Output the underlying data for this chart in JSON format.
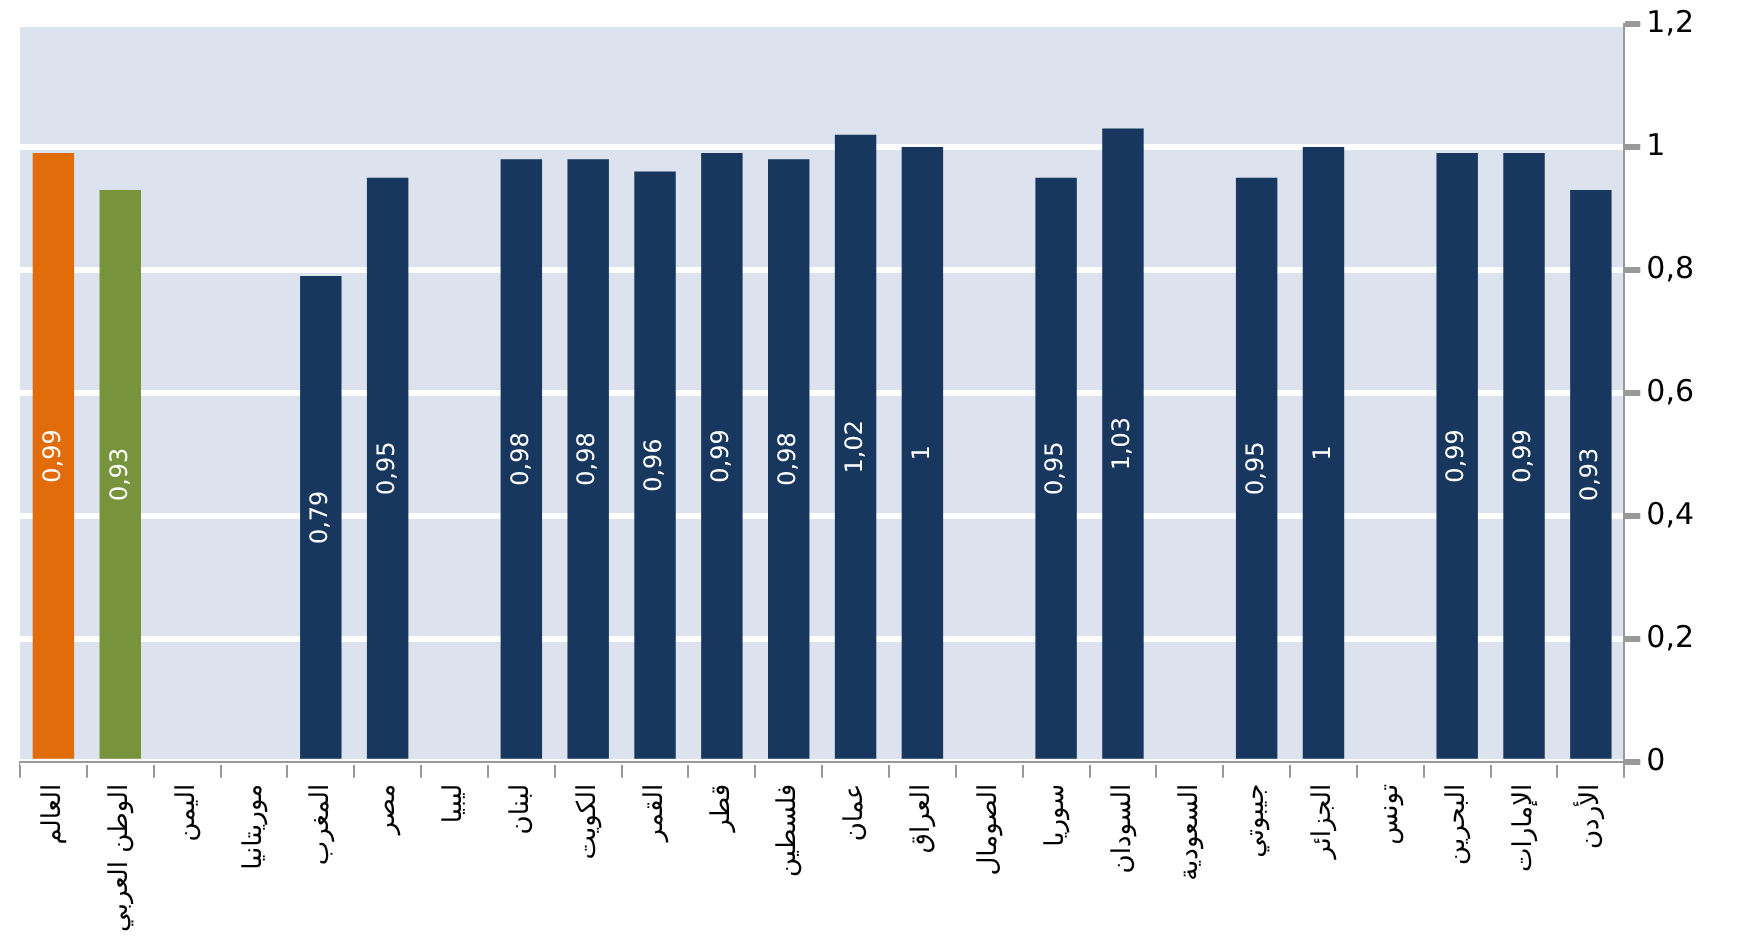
{
  "chart_data": {
    "type": "bar",
    "categories": [
      "العالم",
      "الوطن العربي",
      "اليمن",
      "موريتانيا",
      "المغرب",
      "مصر",
      "ليبيا",
      "لبنان",
      "الكويت",
      "القمر",
      "قطر",
      "فلسطين",
      "عمان",
      "العراق",
      "الصومال",
      "سوريا",
      "السودان",
      "السعودية",
      "جيبوتي",
      "الجزائر",
      "تونس",
      "البحرين",
      "الإمارات",
      "الأردن"
    ],
    "values": [
      0.99,
      0.93,
      null,
      null,
      0.79,
      0.95,
      null,
      0.98,
      0.98,
      0.96,
      0.99,
      0.98,
      1.02,
      1,
      null,
      0.95,
      1.03,
      null,
      0.95,
      1,
      null,
      0.99,
      0.99,
      0.93
    ],
    "colors": [
      "#e36c0a",
      "#77933c",
      "#17375e",
      "#17375e",
      "#17375e",
      "#17375e",
      "#17375e",
      "#17375e",
      "#17375e",
      "#17375e",
      "#17375e",
      "#17375e",
      "#17375e",
      "#17375e",
      "#17375e",
      "#17375e",
      "#17375e",
      "#17375e",
      "#17375e",
      "#17375e",
      "#17375e",
      "#17375e",
      "#17375e",
      "#17375e"
    ],
    "value_labels": [
      "0,99",
      "0,93",
      null,
      null,
      "0,79",
      "0,95",
      null,
      "0,98",
      "0,98",
      "0,96",
      "0,99",
      "0,98",
      "1,02",
      "1",
      null,
      "0,95",
      "1,03",
      null,
      "0,95",
      "1",
      null,
      "0,99",
      "0,99",
      "0,93"
    ],
    "ylim": [
      0,
      1.2
    ],
    "yticks": [
      {
        "value": 0,
        "label": "0"
      },
      {
        "value": 0.2,
        "label": "0,2"
      },
      {
        "value": 0.4,
        "label": "0,4"
      },
      {
        "value": 0.6,
        "label": "0,6"
      },
      {
        "value": 0.8,
        "label": "0,8"
      },
      {
        "value": 1,
        "label": "1"
      },
      {
        "value": 1.2,
        "label": "1,2"
      }
    ],
    "grid": "y",
    "legend": false
  }
}
